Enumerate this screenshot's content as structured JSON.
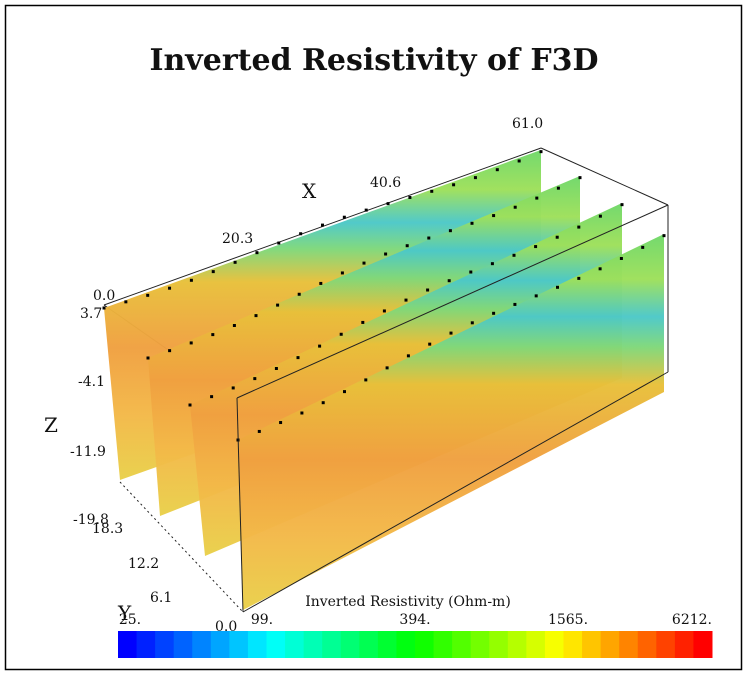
{
  "title": "Inverted Resistivity of F3D",
  "axes": {
    "x": {
      "label": "X",
      "ticks": [
        "0.0",
        "20.3",
        "40.6",
        "61.0"
      ]
    },
    "y": {
      "label": "Y",
      "ticks": [
        "18.3",
        "12.2",
        "6.1",
        "0.0"
      ]
    },
    "z": {
      "label": "Z",
      "ticks": [
        "3.7",
        "-4.1",
        "-11.9",
        "-19.8"
      ]
    }
  },
  "colorbar": {
    "title": "Inverted Resistivity (Ohm-m)",
    "labels": [
      "25.",
      "99.",
      "394.",
      "1565.",
      "6212."
    ]
  }
}
